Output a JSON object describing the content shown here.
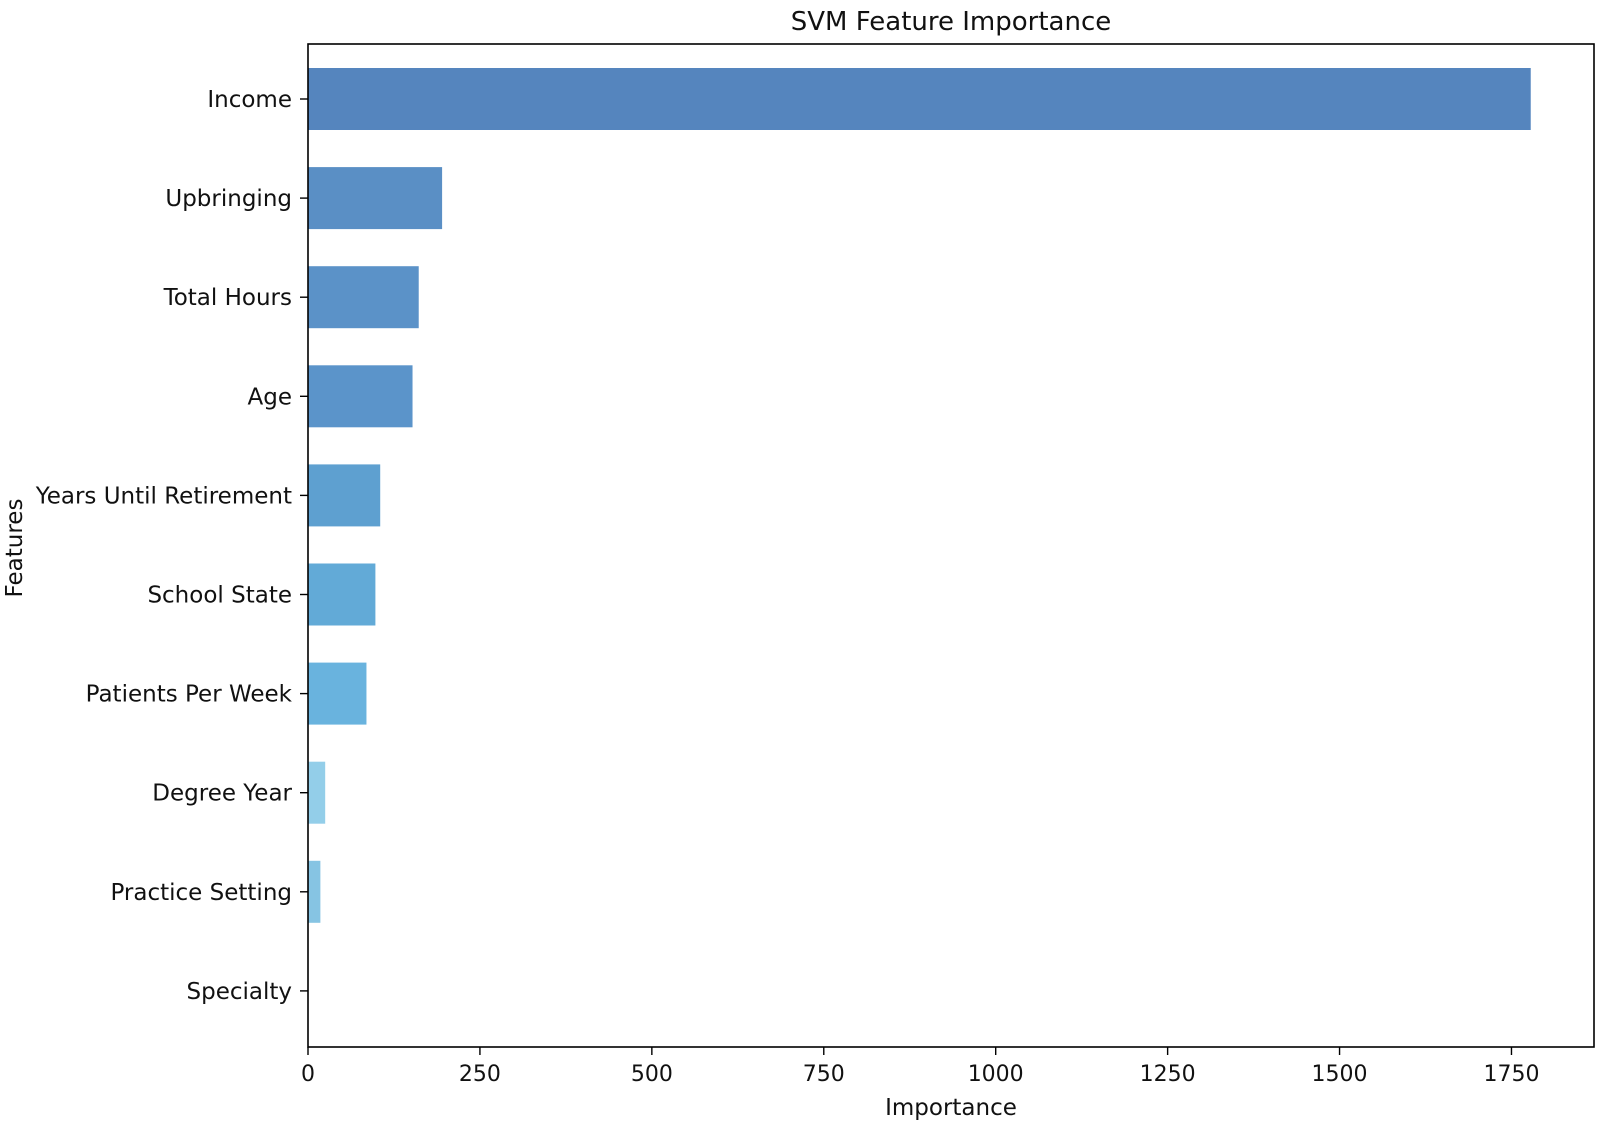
{
  "chart_data": {
    "type": "bar",
    "orientation": "horizontal",
    "title": "SVM Feature Importance",
    "xlabel": "Importance",
    "ylabel": "Features",
    "categories": [
      "Income",
      "Upbringing",
      "Total Hours",
      "Age",
      "Years Until Retirement",
      "School State",
      "Patients Per Week",
      "Degree Year",
      "Practice Setting",
      "Specialty"
    ],
    "values": [
      1778,
      195,
      161,
      152,
      105,
      98,
      85,
      25,
      18,
      0
    ],
    "xlim": [
      0,
      1870
    ],
    "xticks": [
      0,
      250,
      500,
      750,
      1000,
      1250,
      1500,
      1750
    ],
    "grid": false,
    "legend": "none",
    "colors": [
      "#5585be",
      "#5a8fc5",
      "#5b92c8",
      "#5b94ca",
      "#5ea0d0",
      "#62aad7",
      "#69b3de",
      "#93cee9",
      "#86c4e3",
      "#c8e6f3"
    ]
  }
}
